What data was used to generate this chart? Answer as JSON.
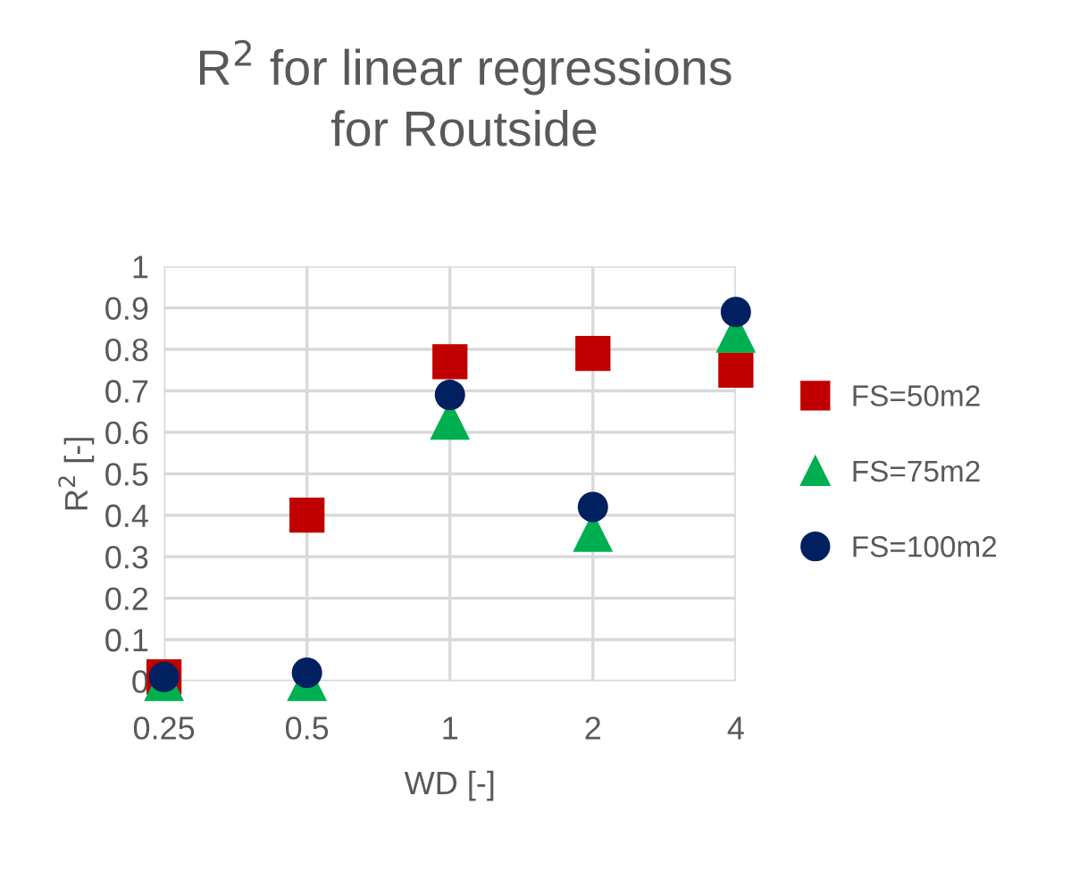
{
  "chart_data": {
    "type": "scatter",
    "title": "R$^{2}$ for linear regressions for Routside",
    "xlabel": "WD [-]",
    "ylabel": "R$^{2}$ [-]",
    "categories": [
      "0.25",
      "0.5",
      "1",
      "2",
      "4"
    ],
    "series": [
      {
        "name": "FS=50m2",
        "color": "#c00000",
        "marker": "square",
        "values": [
          0.01,
          0.4,
          0.77,
          0.79,
          0.75
        ]
      },
      {
        "name": "FS=75m2",
        "color": "#00b050",
        "marker": "triangle",
        "values": [
          0.0,
          0.0,
          0.63,
          0.36,
          0.84
        ]
      },
      {
        "name": "FS=100m2",
        "color": "#002060",
        "marker": "circle",
        "values": [
          0.01,
          0.02,
          0.69,
          0.42,
          0.89
        ]
      }
    ],
    "ylim": [
      0,
      1
    ],
    "yticks": [
      0,
      0.1,
      0.2,
      0.3,
      0.4,
      0.5,
      0.6,
      0.7,
      0.8,
      0.9,
      1
    ],
    "grid": true,
    "legend": "right"
  }
}
